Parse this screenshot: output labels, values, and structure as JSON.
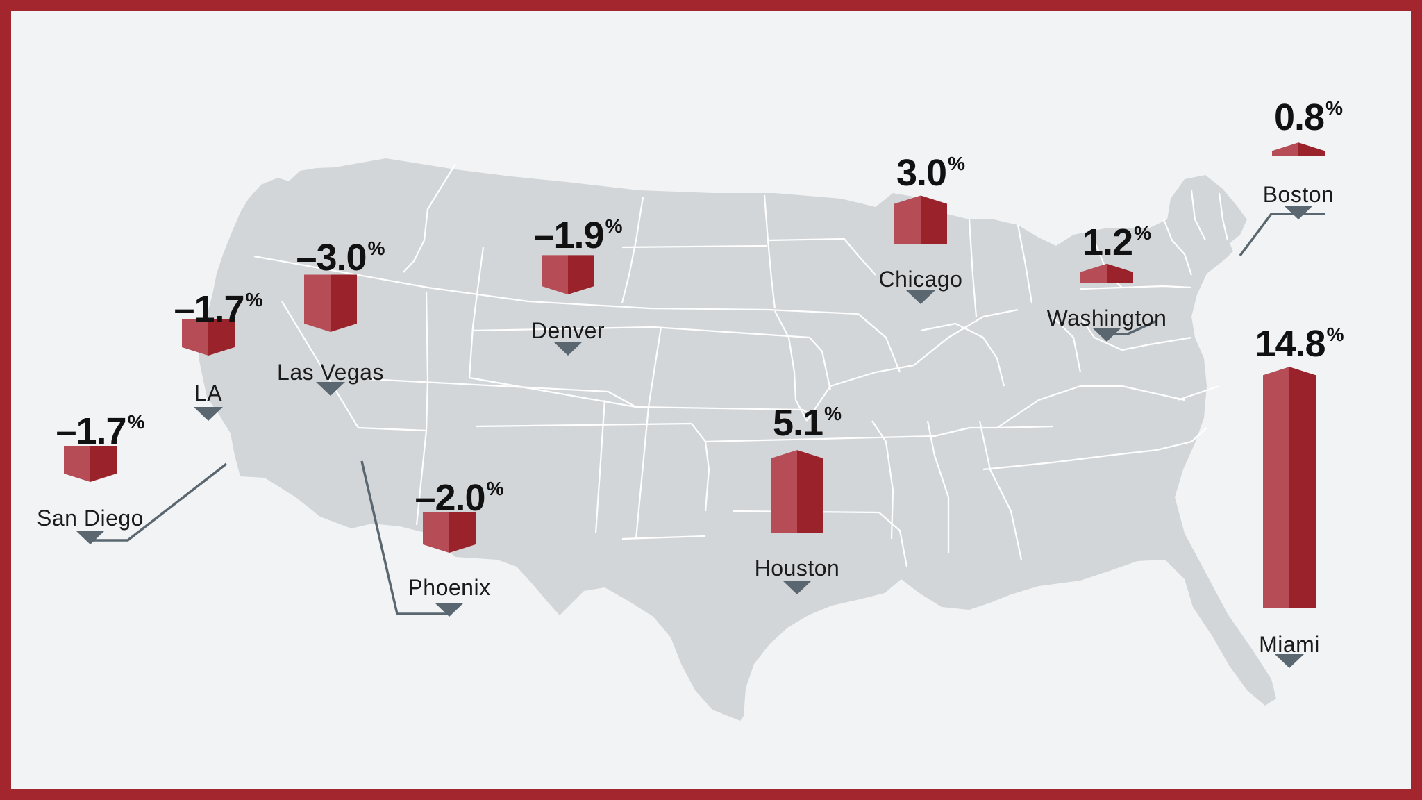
{
  "chart_data": {
    "type": "bar",
    "categories": [
      "San Diego",
      "LA",
      "Las Vegas",
      "Denver",
      "Phoenix",
      "Chicago",
      "Houston",
      "Washington",
      "Boston",
      "Miami"
    ],
    "values": [
      -1.7,
      -1.7,
      -3.0,
      -1.9,
      -2.0,
      3.0,
      5.1,
      1.2,
      0.8,
      14.8
    ],
    "value_labels": [
      "–1.7",
      "–1.7",
      "–3.0",
      "–1.9",
      "–2.0",
      "3.0",
      "5.1",
      "1.2",
      "0.8",
      "14.8"
    ],
    "unit": "%",
    "title": "",
    "basemap": "United States (contiguous)"
  },
  "colors": {
    "border": "#a3252e",
    "background": "#f1f3f4",
    "land": "#d3d6d9",
    "state_lines": "#ffffff",
    "bar_light": "#b54c56",
    "bar_dark": "#9a222b",
    "pointer": "#5a6770"
  },
  "icons": {
    "pointer": "caret-down-icon"
  }
}
